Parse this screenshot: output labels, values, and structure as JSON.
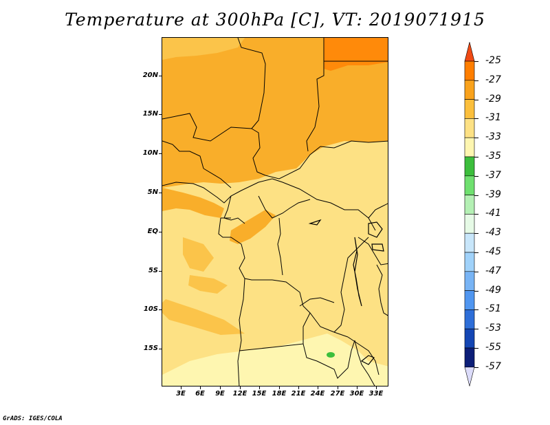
{
  "title": "Temperature at 300hPa [C], VT: 2019071915",
  "credit": "GrADS: IGES/COLA",
  "map": {
    "lat_labels": [
      "20N",
      "15N",
      "10N",
      "5N",
      "EQ",
      "5S",
      "10S",
      "15S"
    ],
    "lon_labels": [
      "3E",
      "6E",
      "9E",
      "12E",
      "15E",
      "18E",
      "21E",
      "24E",
      "27E",
      "30E",
      "33E"
    ]
  },
  "colorbar": {
    "labels": [
      "-25",
      "-27",
      "-29",
      "-31",
      "-33",
      "-35",
      "-37",
      "-39",
      "-41",
      "-43",
      "-45",
      "-47",
      "-49",
      "-51",
      "-53",
      "-55",
      "-57"
    ],
    "colors": [
      "#f04a14",
      "#ff7e00",
      "#f9a21c",
      "#fbbf3c",
      "#fde184",
      "#fef6b0",
      "#3cbe3c",
      "#6fe06f",
      "#b4f0b4",
      "#e6fae6",
      "#c8e6fa",
      "#a0d2fa",
      "#78b4f5",
      "#5096f0",
      "#2e6ed8",
      "#1446b4",
      "#0c1e78",
      "#dcdcfa"
    ]
  }
}
